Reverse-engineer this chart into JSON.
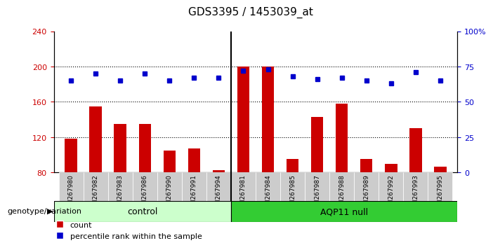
{
  "title": "GDS3395 / 1453039_at",
  "samples": [
    "GSM267980",
    "GSM267982",
    "GSM267983",
    "GSM267986",
    "GSM267990",
    "GSM267991",
    "GSM267994",
    "GSM267981",
    "GSM267984",
    "GSM267985",
    "GSM267987",
    "GSM267988",
    "GSM267989",
    "GSM267992",
    "GSM267993",
    "GSM267995"
  ],
  "counts": [
    118,
    155,
    135,
    135,
    105,
    107,
    83,
    200,
    200,
    95,
    143,
    158,
    95,
    90,
    130,
    87
  ],
  "percentiles": [
    65,
    70,
    65,
    70,
    65,
    67,
    67,
    72,
    73,
    68,
    66,
    67,
    65,
    63,
    71,
    65
  ],
  "control_count": 7,
  "aqp11_count": 9,
  "bar_color": "#cc0000",
  "dot_color": "#0000cc",
  "ylim_left": [
    80,
    240
  ],
  "ylim_right": [
    0,
    100
  ],
  "yticks_left": [
    80,
    120,
    160,
    200,
    240
  ],
  "yticks_right": [
    0,
    25,
    50,
    75,
    100
  ],
  "control_color": "#ccffcc",
  "aqp11_color": "#33cc33",
  "xticklabel_bg": "#cccccc",
  "bar_bottom": 80
}
